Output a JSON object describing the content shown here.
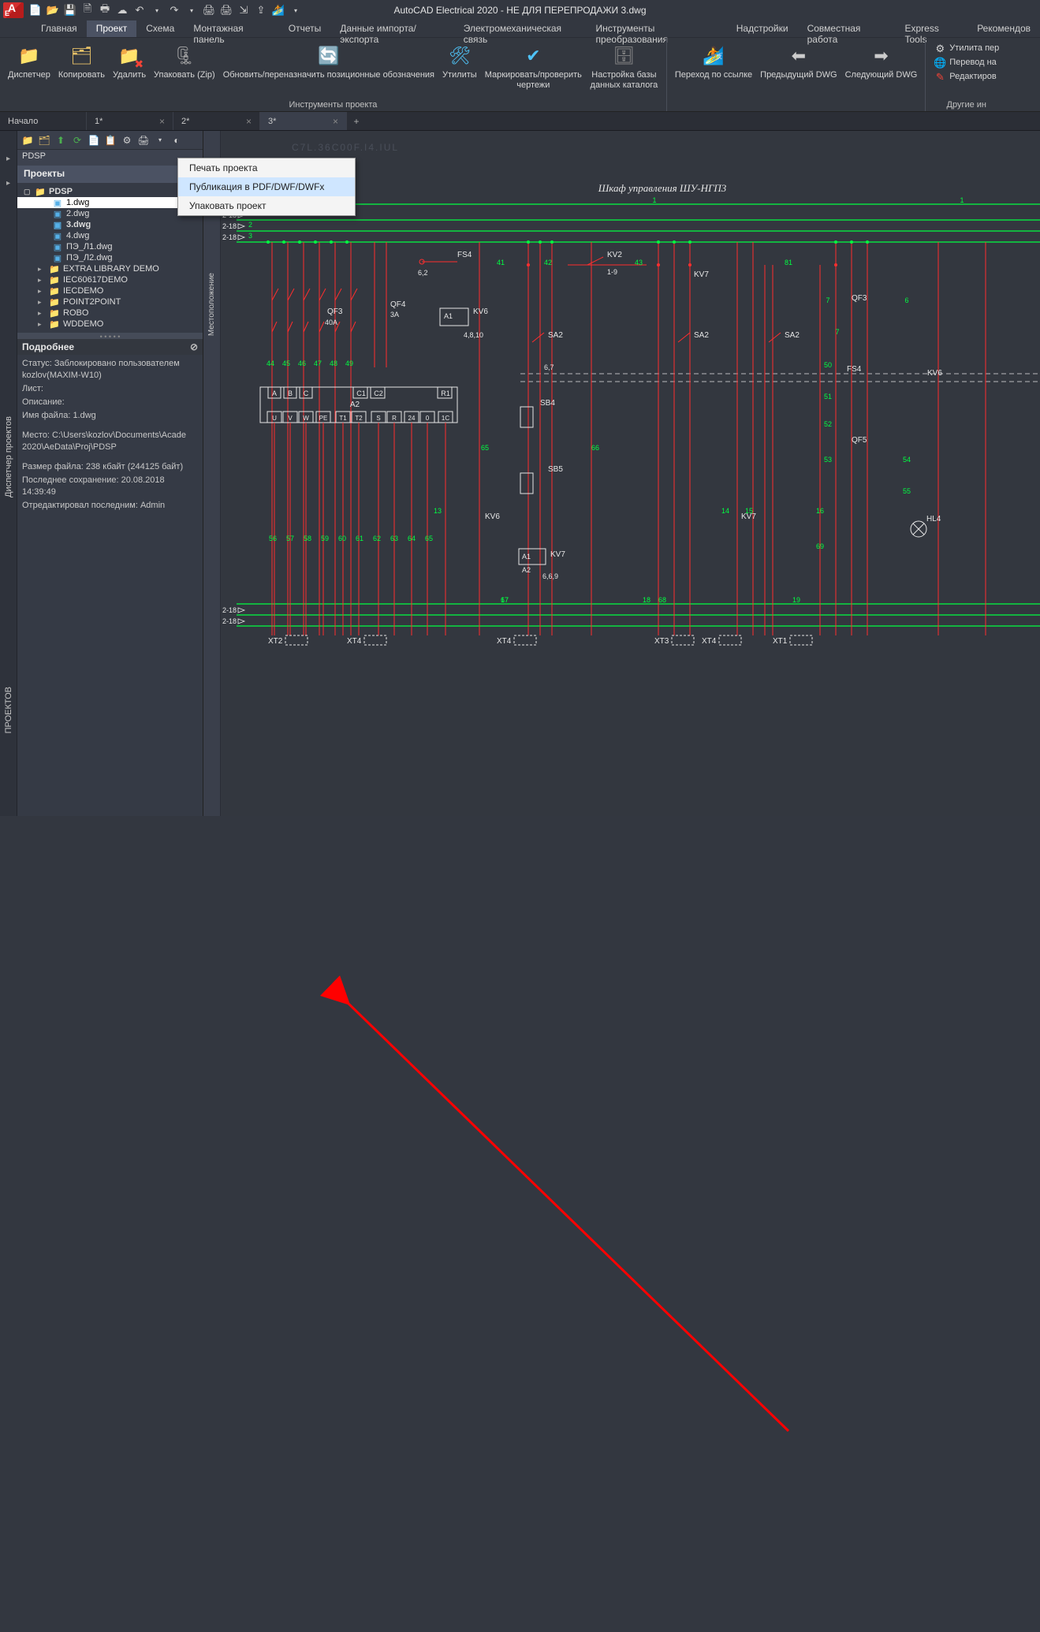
{
  "title": "AutoCAD Electrical 2020 - НЕ ДЛЯ ПЕРЕПРОДАЖИ   3.dwg",
  "ribbon_tabs": [
    "Главная",
    "Проект",
    "Схема",
    "Монтажная панель",
    "Отчеты",
    "Данные импорта/экспорта",
    "Электромеханическая связь",
    "Инструменты преобразования",
    "Надстройки",
    "Совместная работа",
    "Express Tools",
    "Рекомендов"
  ],
  "ribbon_active": 1,
  "ribbon": {
    "group1_label": "Инструменты проекта",
    "btns": {
      "dispatcher": "Диспетчер",
      "copy": "Копировать",
      "delete": "Удалить",
      "zip": "Упаковать (Zip)",
      "refresh": "Обновить/переназначить позиционные обозначения",
      "utilities": "Утилиты",
      "mark": "Маркировать/проверить\nчертежи",
      "db": "Настройка базы\nданных каталога",
      "link": "Переход по ссылке",
      "prev": "Предыдущий DWG",
      "next": "Следующий DWG",
      "other_label": "Другие ин",
      "util_per": "Утилита пер",
      "trans": "Перевод на",
      "edit": "Редактиров"
    }
  },
  "filetabs": [
    "Начало",
    "1*",
    "2*",
    "3*"
  ],
  "filetab_active": 3,
  "sidepanel": {
    "vtab1": "Диспетчер проектов",
    "vtab2": "ПРОЕКТОВ",
    "sp_sub": "PDSP",
    "sp_header": "Проекты",
    "tree": {
      "root": "PDSP",
      "files": [
        "1.dwg",
        "2.dwg",
        "3.dwg",
        "4.dwg",
        "ПЭ_Л1.dwg",
        "ПЭ_Л2.dwg"
      ],
      "bold_idx": 2,
      "sel_idx": 0,
      "others": [
        "EXTRA LIBRARY DEMO",
        "IEC60617DEMO",
        "IECDEMO",
        "POINT2POINT",
        "ROBO",
        "WDDEMO"
      ]
    },
    "details_h": "Подробнее",
    "details": {
      "l1": "Статус: Заблокировано пользователем kozlov(MAXIM-W10)",
      "l2": "Лист:",
      "l3": "Описание:",
      "l4": "Имя файла: 1.dwg",
      "l5": "Место: C:\\Users\\kozlov\\Documents\\Acade 2020\\AeData\\Proj\\PDSP",
      "l6": "Размер файла: 238 кбайт (244125 байт)",
      "l7": "Последнее сохранение: 20.08.2018 14:39:49",
      "l8": "Отредактировал последним: Admin"
    }
  },
  "popup": {
    "i1": "Печать проекта",
    "i2": "Публикация в PDF/DWF/DWFx",
    "i3": "Упаковать проект"
  },
  "canvas_side": "Местоположение",
  "drawing": {
    "title": "Шкаф управления ШУ-НГП3",
    "labels": {
      "fs4": "FS4",
      "kv2": "KV2",
      "kv7": "KV7",
      "kv7b": "KV7",
      "kv6": "KV6",
      "kv6b": "KV6",
      "qf3": "QF3",
      "qf3b": "QF3",
      "qf4": "QF4",
      "qf5": "QF5",
      "sa2": "SA2",
      "sa2b": "SA2",
      "sa2c": "SA2",
      "sb4": "SB4",
      "sb5": "SB5",
      "a2": "A2",
      "a1": "A1",
      "a1b": "A1",
      "a2b": "A2",
      "fs4b": "FS4",
      "hl4": "HL4",
      "c1": "С1",
      "c2": "С2",
      "r1": "R1",
      "abc_a": "A",
      "abc_b": "B",
      "abc_c": "C",
      "uvw_u": "U",
      "uvw_v": "V",
      "uvw_w": "W",
      "pe": "PE",
      "t1": "T1",
      "t2": "T2",
      "s": "S",
      "r": "R",
      "v24": "24",
      "zero": "0",
      "one_c": "1С",
      "xt1": "XT1",
      "xt2": "XT2",
      "xt3": "XT3",
      "xt4": "XT4",
      "xt4b": "XT4",
      "xt4c": "XT4",
      "a40": "40A",
      "a3": "3A",
      "r62": "6,2",
      "r19": "1-9",
      "r4810": "4,8,10",
      "r67": "6,7",
      "r669": "6,6,9",
      "row_2_18a": "2-18",
      "row_2_18b": "2-18",
      "row_2_18c": "2-18",
      "row_2_18d": "2-18",
      "row_2_18e": "2-18"
    },
    "wire_nums_top": [
      "1",
      "2",
      "3"
    ],
    "wire_nums_g1": [
      "44",
      "45",
      "46",
      "47",
      "48",
      "49"
    ],
    "wire_nums_g2": [
      "56",
      "57",
      "58",
      "59",
      "60",
      "61",
      "62",
      "63",
      "64",
      "65"
    ],
    "wire_nums_misc": [
      "13",
      "14",
      "15",
      "16",
      "17",
      "18",
      "19",
      "41",
      "42",
      "43",
      "50",
      "51",
      "52",
      "53",
      "54",
      "55",
      "6",
      "7",
      "65",
      "66",
      "67",
      "68",
      "69",
      "81"
    ],
    "colors": {
      "bg": "#33373f",
      "red": "#ff2e2e",
      "green": "#00ff41",
      "cyan": "#4dd2ff",
      "white": "#e6e6e6",
      "wire_num": "#00ff41",
      "frame": "#e0e0e0"
    }
  }
}
